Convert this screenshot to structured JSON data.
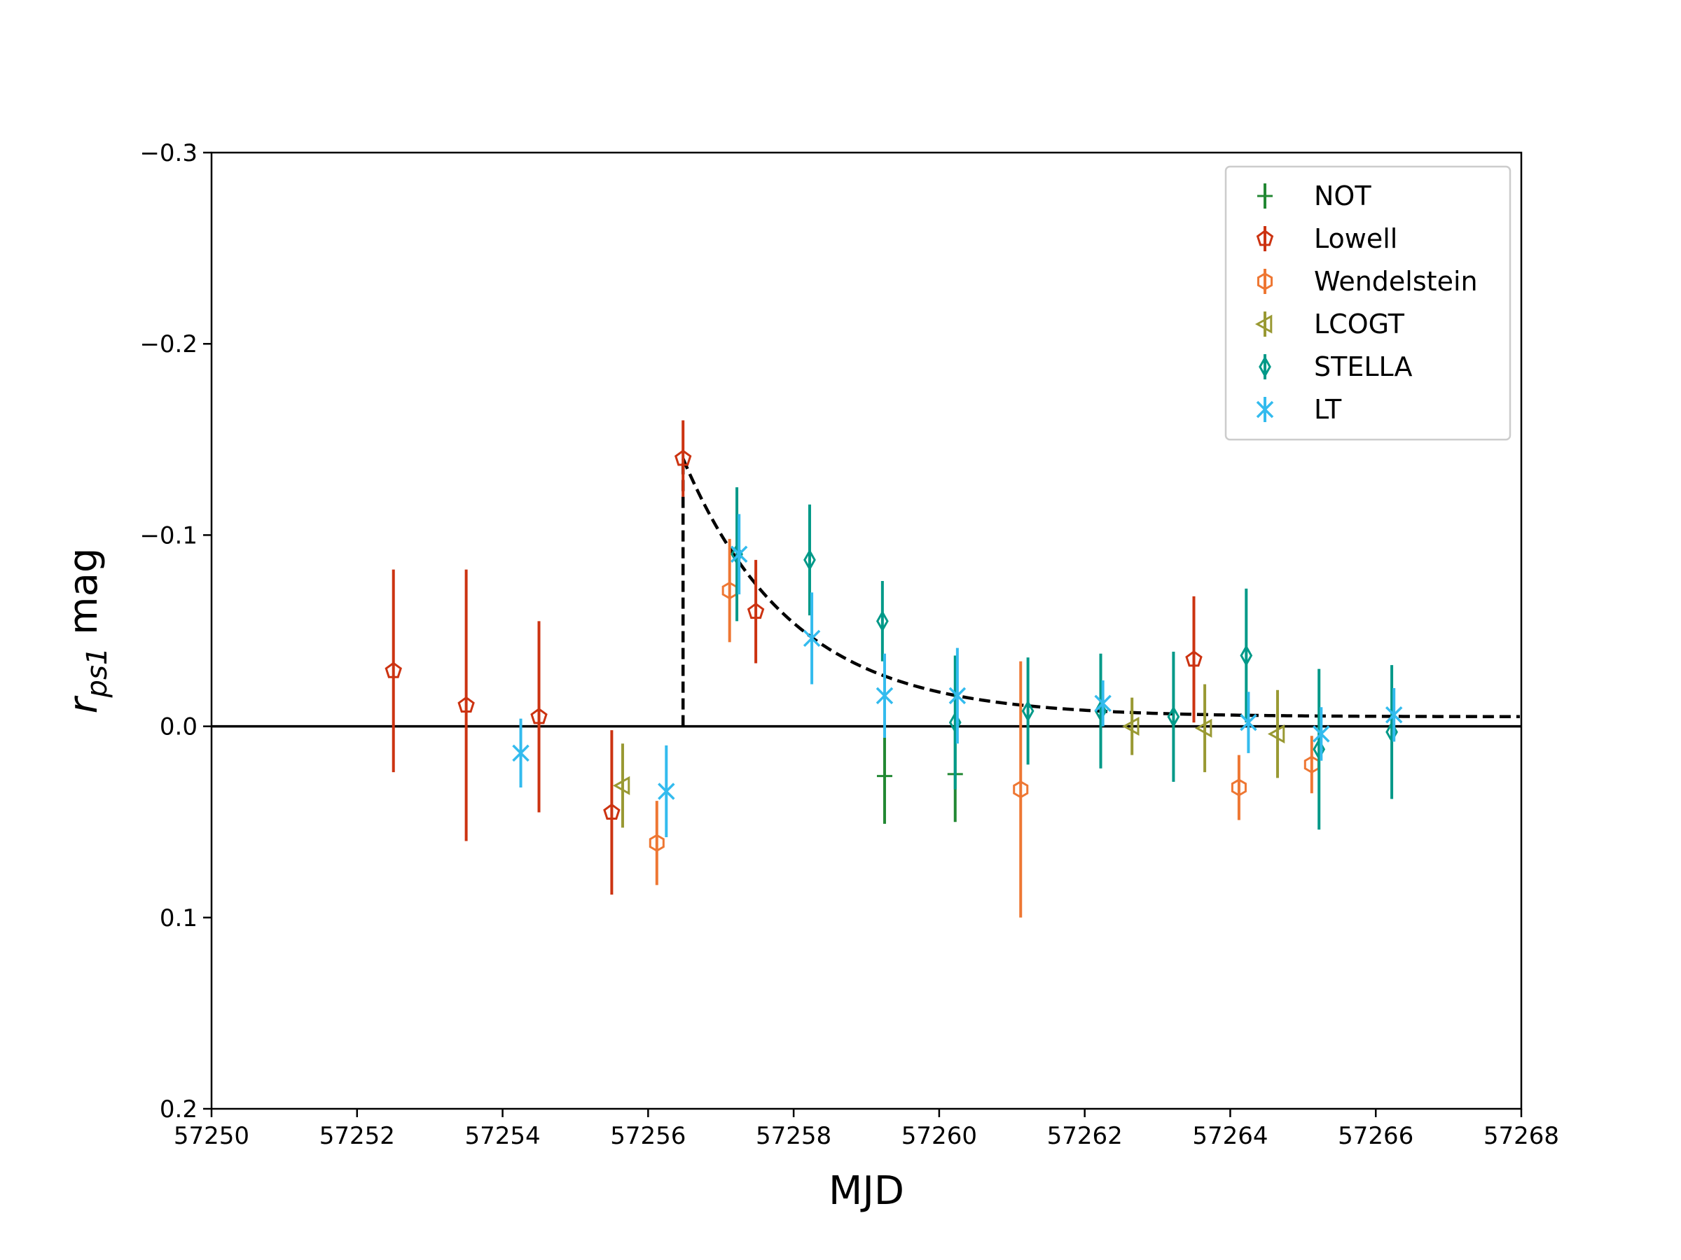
{
  "chart_data": {
    "type": "scatter",
    "title": "",
    "xlabel": "MJD",
    "ylabel_main": "r",
    "ylabel_sub": "ps1",
    "ylabel_suffix": " mag",
    "xlim": [
      57250,
      57268
    ],
    "ylim": [
      0.2,
      -0.3
    ],
    "y_inverted": true,
    "x_ticks": [
      57250,
      57252,
      57254,
      57256,
      57258,
      57260,
      57262,
      57264,
      57266,
      57268
    ],
    "y_ticks": [
      -0.3,
      -0.2,
      -0.1,
      0.0,
      0.1,
      0.2
    ],
    "y_tick_labels": [
      "−0.3",
      "−0.2",
      "−0.1",
      "0.0",
      "0.1",
      "0.2"
    ],
    "grid": false,
    "legend_position": "top-right",
    "reference_line_y": 0.0,
    "fit_curve": {
      "style": "dashed",
      "color": "#000000",
      "t0": 57256.48,
      "peak": -0.14,
      "baseline": -0.005,
      "decay_days": 1.5
    },
    "series": [
      {
        "name": "NOT",
        "marker": "plus",
        "color": "#228833",
        "points": [
          {
            "x": 57259.25,
            "y": 0.026,
            "err": 0.025
          },
          {
            "x": 57260.22,
            "y": 0.025,
            "err": 0.025
          }
        ]
      },
      {
        "name": "Lowell",
        "marker": "pentagon",
        "color": "#CC3311",
        "points": [
          {
            "x": 57252.5,
            "y": -0.029,
            "err": 0.053
          },
          {
            "x": 57253.5,
            "y": -0.011,
            "err": 0.071
          },
          {
            "x": 57254.5,
            "y": -0.005,
            "err": 0.05
          },
          {
            "x": 57255.5,
            "y": 0.045,
            "err": 0.043
          },
          {
            "x": 57256.48,
            "y": -0.14,
            "err": 0.02
          },
          {
            "x": 57257.48,
            "y": -0.06,
            "err": 0.027
          },
          {
            "x": 57263.5,
            "y": -0.035,
            "err": 0.033
          }
        ]
      },
      {
        "name": "Wendelstein",
        "marker": "hexagon",
        "color": "#EE7733",
        "points": [
          {
            "x": 57256.12,
            "y": 0.061,
            "err": 0.022
          },
          {
            "x": 57257.12,
            "y": -0.071,
            "err": 0.027
          },
          {
            "x": 57261.12,
            "y": 0.033,
            "err": 0.067
          },
          {
            "x": 57264.12,
            "y": 0.032,
            "err": 0.017
          },
          {
            "x": 57265.12,
            "y": 0.02,
            "err": 0.015
          }
        ]
      },
      {
        "name": "LCOGT",
        "marker": "triangle-left",
        "color": "#999933",
        "points": [
          {
            "x": 57255.65,
            "y": 0.031,
            "err": 0.022
          },
          {
            "x": 57262.65,
            "y": 0.0,
            "err": 0.015
          },
          {
            "x": 57263.65,
            "y": 0.001,
            "err": 0.023
          },
          {
            "x": 57264.65,
            "y": 0.004,
            "err": 0.023
          }
        ]
      },
      {
        "name": "STELLA",
        "marker": "thin-diamond",
        "color": "#009988",
        "points": [
          {
            "x": 57257.22,
            "y": -0.09,
            "err": 0.035
          },
          {
            "x": 57258.22,
            "y": -0.087,
            "err": 0.029
          },
          {
            "x": 57259.22,
            "y": -0.055,
            "err": 0.021
          },
          {
            "x": 57260.22,
            "y": -0.002,
            "err": 0.035
          },
          {
            "x": 57261.22,
            "y": -0.008,
            "err": 0.028
          },
          {
            "x": 57262.22,
            "y": -0.008,
            "err": 0.03
          },
          {
            "x": 57263.22,
            "y": -0.005,
            "err": 0.034
          },
          {
            "x": 57264.22,
            "y": -0.037,
            "err": 0.035
          },
          {
            "x": 57265.22,
            "y": 0.012,
            "err": 0.042
          },
          {
            "x": 57266.22,
            "y": 0.003,
            "err": 0.035
          }
        ]
      },
      {
        "name": "LT",
        "marker": "x",
        "color": "#33BBEE",
        "points": [
          {
            "x": 57254.25,
            "y": 0.014,
            "err": 0.018
          },
          {
            "x": 57256.25,
            "y": 0.034,
            "err": 0.024
          },
          {
            "x": 57257.25,
            "y": -0.09,
            "err": 0.021
          },
          {
            "x": 57258.25,
            "y": -0.046,
            "err": 0.024
          },
          {
            "x": 57259.25,
            "y": -0.016,
            "err": 0.022
          },
          {
            "x": 57260.25,
            "y": -0.016,
            "err": 0.025
          },
          {
            "x": 57262.25,
            "y": -0.012,
            "err": 0.012
          },
          {
            "x": 57264.25,
            "y": -0.002,
            "err": 0.016
          },
          {
            "x": 57265.25,
            "y": 0.004,
            "err": 0.014
          },
          {
            "x": 57266.25,
            "y": -0.006,
            "err": 0.014
          }
        ]
      }
    ]
  }
}
